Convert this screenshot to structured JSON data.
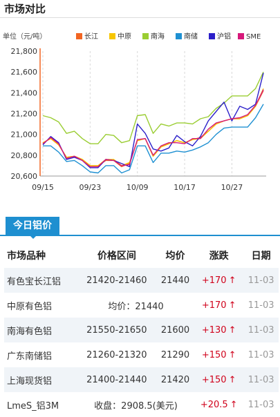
{
  "header": {
    "title": "市场对比"
  },
  "chart_data": {
    "type": "line",
    "ylabel": "单位（元/吨）",
    "ylim": [
      20600,
      21800
    ],
    "yticks": [
      20600,
      20800,
      21000,
      21200,
      21400,
      21600,
      21800
    ],
    "ytick_labels": [
      "20,600",
      "20,800",
      "21,000",
      "21,200",
      "21,400",
      "21,600",
      "21,800"
    ],
    "xticks": [
      "09/15",
      "09/23",
      "10/09",
      "10/17",
      "10/27"
    ],
    "xtick_index": [
      0,
      6,
      12,
      18,
      24
    ],
    "grid": "vertical-dashed",
    "legend_position": "top",
    "series": [
      {
        "name": "长江",
        "color": "#f26522",
        "values": [
          20920,
          20960,
          20900,
          20780,
          20790,
          20760,
          20700,
          20700,
          20750,
          20750,
          20690,
          20720,
          20940,
          20960,
          20790,
          20880,
          20910,
          20940,
          20920,
          20950,
          20970,
          21030,
          21100,
          21130,
          21150,
          21150,
          21180,
          21270,
          21420
        ]
      },
      {
        "name": "中原",
        "color": "#f7c600",
        "values": [
          20920,
          20960,
          20900,
          20780,
          20790,
          20760,
          20700,
          20700,
          20760,
          20760,
          20700,
          20730,
          20940,
          20960,
          20790,
          20880,
          20910,
          20940,
          20920,
          20950,
          20960,
          21030,
          21100,
          21130,
          21150,
          21150,
          21180,
          21270,
          21440
        ]
      },
      {
        "name": "南海",
        "color": "#9acd32",
        "values": [
          21180,
          21160,
          21120,
          21010,
          21030,
          20960,
          20910,
          20910,
          21000,
          20990,
          20920,
          20940,
          21180,
          21190,
          21010,
          21100,
          21080,
          21110,
          21110,
          21100,
          21150,
          21170,
          21250,
          21300,
          21370,
          21370,
          21370,
          21440,
          21600
        ]
      },
      {
        "name": "南储",
        "color": "#1e90d2",
        "values": [
          20890,
          20890,
          20830,
          20740,
          20750,
          20700,
          20640,
          20630,
          20700,
          20700,
          20630,
          20660,
          20890,
          20890,
          20730,
          20820,
          20820,
          20840,
          20830,
          20850,
          20880,
          20920,
          21000,
          21060,
          21070,
          21070,
          21070,
          21160,
          21290
        ]
      },
      {
        "name": "沪铝",
        "color": "#2b1fc9",
        "values": [
          20900,
          20980,
          20920,
          20760,
          20780,
          20750,
          20680,
          20680,
          20760,
          20750,
          20720,
          20690,
          21100,
          21010,
          20860,
          20840,
          20870,
          20990,
          20930,
          20890,
          20980,
          21130,
          21220,
          21310,
          21130,
          21270,
          21240,
          21290,
          21590
        ]
      },
      {
        "name": "SME",
        "color": "#d6187a",
        "values": [
          20910,
          20970,
          20910,
          20770,
          20790,
          20750,
          20690,
          20690,
          20760,
          20750,
          20700,
          20710,
          20950,
          20960,
          20800,
          20890,
          20920,
          20920,
          20910,
          20960,
          20960,
          21050,
          21110,
          21130,
          21150,
          21160,
          21190,
          21280,
          21430
        ]
      }
    ]
  },
  "prices": {
    "tab_label": "今日铝价",
    "headers": {
      "market": "市场品种",
      "range": "价格区间",
      "avg": "均价",
      "change": "涨跌",
      "date": "日期"
    },
    "rows": [
      {
        "market": "有色宝长江铝",
        "range": "21420-21460",
        "avg": "21440",
        "change": "+170",
        "date": "11-03"
      },
      {
        "market": "中原有色铝",
        "merged": "均价：21440",
        "change": "+170",
        "date": "11-03"
      },
      {
        "market": "南海有色铝",
        "range": "21550-21650",
        "avg": "21600",
        "change": "+130",
        "date": "11-03"
      },
      {
        "market": "广东南储铝",
        "range": "21260-21320",
        "avg": "21290",
        "change": "+150",
        "date": "11-03"
      },
      {
        "market": "上海现货铝",
        "range": "21400-21440",
        "avg": "21420",
        "change": "+150",
        "date": "11-03"
      },
      {
        "market": "LmeS_铝3M",
        "merged": "收盘：2908.5(美元)",
        "change": "+20.5",
        "date": "11-03"
      }
    ]
  }
}
